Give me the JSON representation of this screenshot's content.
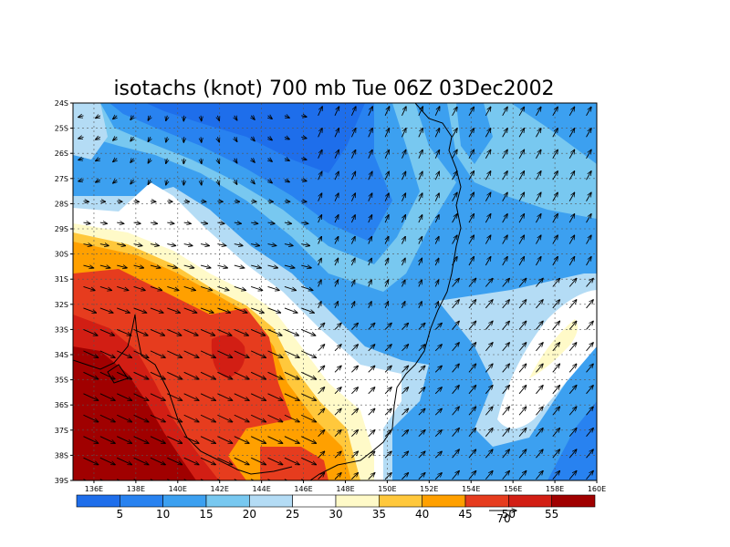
{
  "map": {
    "title": "isotachs (knot) 700 mb Tue 06Z 03Dec2002",
    "lon_min": 135,
    "lon_max": 160,
    "lat_min": -39,
    "lat_max": -24,
    "lon_ticks": [
      {
        "value": 136,
        "label": "136E"
      },
      {
        "value": 138,
        "label": "138E"
      },
      {
        "value": 140,
        "label": "140E"
      },
      {
        "value": 142,
        "label": "142E"
      },
      {
        "value": 144,
        "label": "144E"
      },
      {
        "value": 146,
        "label": "146E"
      },
      {
        "value": 148,
        "label": "148E"
      },
      {
        "value": 150,
        "label": "150E"
      },
      {
        "value": 152,
        "label": "152E"
      },
      {
        "value": 154,
        "label": "154E"
      },
      {
        "value": 156,
        "label": "156E"
      },
      {
        "value": 158,
        "label": "158E"
      },
      {
        "value": 160,
        "label": "160E"
      }
    ],
    "lat_ticks": [
      {
        "value": -24,
        "label": "24S"
      },
      {
        "value": -25,
        "label": "25S"
      },
      {
        "value": -26,
        "label": "26S"
      },
      {
        "value": -27,
        "label": "27S"
      },
      {
        "value": -28,
        "label": "28S"
      },
      {
        "value": -29,
        "label": "29S"
      },
      {
        "value": -30,
        "label": "30S"
      },
      {
        "value": -31,
        "label": "31S"
      },
      {
        "value": -32,
        "label": "32S"
      },
      {
        "value": -33,
        "label": "33S"
      },
      {
        "value": -34,
        "label": "34S"
      },
      {
        "value": -35,
        "label": "35S"
      },
      {
        "value": -36,
        "label": "36S"
      },
      {
        "value": -37,
        "label": "37S"
      },
      {
        "value": -38,
        "label": "38S"
      },
      {
        "value": -39,
        "label": "39S"
      }
    ],
    "gridlines": true
  },
  "colorbar": {
    "colors": [
      "#1e6eeb",
      "#2882f0",
      "#3ca0f0",
      "#78c8f0",
      "#b4dcf5",
      "#ffffff",
      "#fffac8",
      "#ffc83c",
      "#ffa000",
      "#e63c1e",
      "#d21e14",
      "#a00000"
    ],
    "labels": [
      "5",
      "10",
      "15",
      "20",
      "25",
      "30",
      "35",
      "40",
      "45",
      "50",
      "55"
    ],
    "reference_vector": "70"
  },
  "legend": {
    "isotach_fills": [
      {
        "range": "0-5",
        "color": "#1e6eeb"
      },
      {
        "range": "5-10",
        "color": "#2882f0"
      },
      {
        "range": "10-15",
        "color": "#3ca0f0"
      },
      {
        "range": "15-20",
        "color": "#78c8f0"
      },
      {
        "range": "20-25",
        "color": "#b4dcf5"
      },
      {
        "range": "25-30",
        "color": "#ffffff"
      },
      {
        "range": "30-35",
        "color": "#fffac8"
      },
      {
        "range": "35-40",
        "color": "#ffc83c"
      },
      {
        "range": "40-45",
        "color": "#ffa000"
      },
      {
        "range": "45-50",
        "color": "#e63c1e"
      },
      {
        "range": "50-55",
        "color": "#d21e14"
      },
      {
        "range": "55+",
        "color": "#a00000"
      }
    ]
  }
}
